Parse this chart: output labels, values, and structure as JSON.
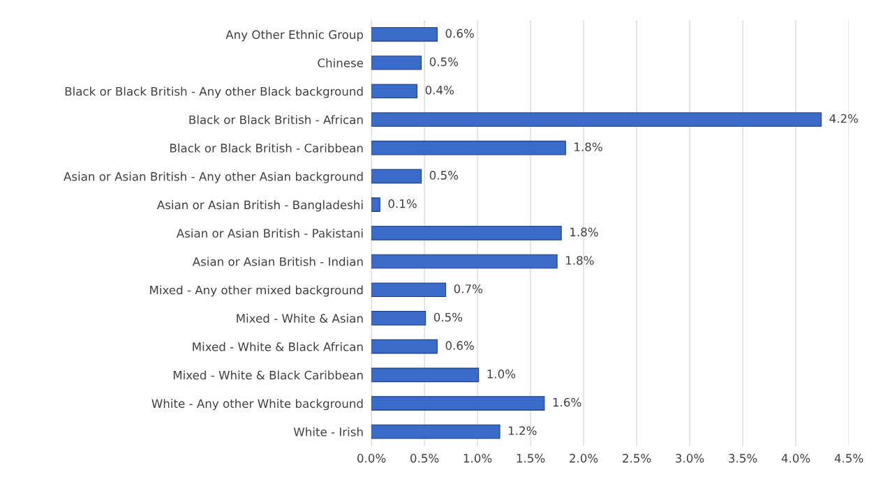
{
  "chart_data": {
    "type": "bar",
    "orientation": "horizontal",
    "categories": [
      "Any Other Ethnic Group",
      "Chinese",
      "Black or Black British - Any other Black background",
      "Black or Black British - African",
      "Black or Black British - Caribbean",
      "Asian or Asian British - Any other Asian background",
      "Asian or Asian British - Bangladeshi",
      "Asian or Asian British - Pakistani",
      "Asian or Asian British - Indian",
      "Mixed - Any other mixed background",
      "Mixed - White & Asian",
      "Mixed - White & Black African",
      "Mixed - White & Black Caribbean",
      "White - Any other White background",
      "White - Irish"
    ],
    "values": [
      0.62,
      0.47,
      0.43,
      4.24,
      1.83,
      0.47,
      0.08,
      1.79,
      1.75,
      0.7,
      0.51,
      0.62,
      1.01,
      1.63,
      1.21
    ],
    "value_labels": [
      "0.6%",
      "0.5%",
      "0.4%",
      "4.2%",
      "1.8%",
      "0.5%",
      "0.1%",
      "1.8%",
      "1.8%",
      "0.7%",
      "0.5%",
      "0.6%",
      "1.0%",
      "1.6%",
      "1.2%"
    ],
    "color": "#3a6bc9",
    "xlim": [
      0,
      4.5
    ],
    "xticks": [
      {
        "value": 0,
        "label": "0.0%"
      },
      {
        "value": 0.5,
        "label": "0.5%"
      },
      {
        "value": 1,
        "label": "1.0%"
      },
      {
        "value": 1.5,
        "label": "1.5%"
      },
      {
        "value": 2,
        "label": "2.0%"
      },
      {
        "value": 2.5,
        "label": "2.5%"
      },
      {
        "value": 3,
        "label": "3.0%"
      },
      {
        "value": 3.5,
        "label": "3.5%"
      },
      {
        "value": 4,
        "label": "4.0%"
      },
      {
        "value": 4.5,
        "label": "4.5%"
      }
    ],
    "grid": "x"
  }
}
